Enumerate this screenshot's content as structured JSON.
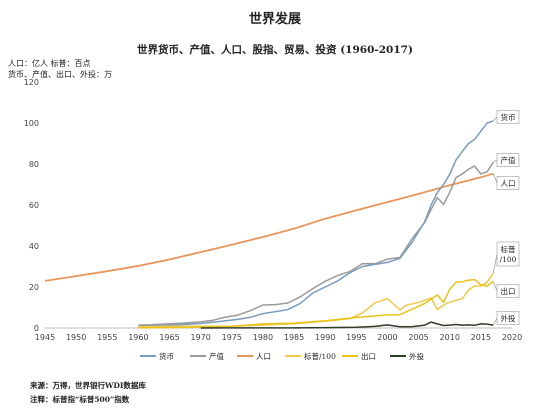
{
  "header": {
    "title": "世界发展",
    "subtitle": "世界货币、产值、人口、股指、贸易、投资 (1960-2017)",
    "unit_line_1": "人口：亿人   标普：百点",
    "unit_line_2": "货币、产值、出口、外投：万"
  },
  "footer": {
    "source": "来源：万得，世界银行WDI数据库",
    "note": "注释：标普指“标普500”指数"
  },
  "colors": {
    "money": "#7a9cc0",
    "gdp": "#9a9a9a",
    "population": "#e8955b",
    "sp500": "#f2c84b",
    "exports": "#e9c21a",
    "fdi": "#2f3d2a"
  },
  "chart_data": {
    "type": "line",
    "title": "世界货币、产值、人口、股指、贸易、投资 (1960-2017)",
    "xlim": [
      1945,
      2020
    ],
    "ylim": [
      0,
      120
    ],
    "xticks": [
      1945,
      1950,
      1955,
      1960,
      1965,
      1970,
      1975,
      1980,
      1985,
      1990,
      1995,
      2000,
      2005,
      2010,
      2015,
      2020
    ],
    "yticks": [
      0,
      20,
      40,
      60,
      80,
      100,
      120
    ],
    "grid": false,
    "legend": "bottom",
    "series": [
      {
        "key": "money",
        "name": "货币",
        "callout": "货币",
        "x": [
          1960,
          1962,
          1964,
          1966,
          1968,
          1970,
          1972,
          1974,
          1976,
          1978,
          1980,
          1982,
          1984,
          1986,
          1988,
          1990,
          1992,
          1994,
          1996,
          1998,
          2000,
          2002,
          2004,
          2006,
          2007,
          2008,
          2009,
          2010,
          2011,
          2012,
          2013,
          2014,
          2015,
          2016,
          2017
        ],
        "values": [
          0.8,
          1.0,
          1.2,
          1.5,
          1.8,
          2.2,
          2.8,
          3.5,
          4.2,
          5.2,
          7,
          8,
          9,
          12,
          17,
          20,
          23,
          27,
          30,
          31,
          32,
          34,
          42,
          52,
          60,
          66,
          70,
          75,
          82,
          86,
          90,
          92,
          96,
          100,
          101
        ]
      },
      {
        "key": "gdp",
        "name": "产值",
        "callout": "产值",
        "x": [
          1960,
          1962,
          1964,
          1966,
          1968,
          1970,
          1972,
          1974,
          1976,
          1978,
          1980,
          1982,
          1984,
          1986,
          1988,
          1990,
          1992,
          1994,
          1996,
          1998,
          2000,
          2002,
          2004,
          2006,
          2007,
          2008,
          2009,
          2010,
          2011,
          2012,
          2013,
          2014,
          2015,
          2016,
          2017
        ],
        "values": [
          1.4,
          1.6,
          1.9,
          2.2,
          2.6,
          3.0,
          3.8,
          5.3,
          6.3,
          8.5,
          11.2,
          11.4,
          12.2,
          15.2,
          19.2,
          22.8,
          25.6,
          27.6,
          31.4,
          31.3,
          33.6,
          34.4,
          43.8,
          51.5,
          57.8,
          63.6,
          60.3,
          66.1,
          73.3,
          75.1,
          77.4,
          79.0,
          75.1,
          76.2,
          80.9
        ]
      },
      {
        "key": "population",
        "name": "人口",
        "callout": "人口",
        "x": [
          1945,
          1950,
          1955,
          1960,
          1965,
          1970,
          1975,
          1980,
          1985,
          1990,
          1995,
          2000,
          2005,
          2010,
          2015,
          2017
        ],
        "values": [
          23,
          25.3,
          27.7,
          30.3,
          33.4,
          37,
          40.6,
          44.4,
          48.5,
          53.3,
          57.4,
          61.4,
          65.4,
          69.6,
          73.5,
          75.3
        ]
      },
      {
        "key": "sp500",
        "name": "标普/100",
        "callout_line_1": "标普",
        "callout_line_2": "/100",
        "x": [
          1960,
          1965,
          1970,
          1975,
          1980,
          1985,
          1990,
          1994,
          1996,
          1998,
          2000,
          2002,
          2003,
          2005,
          2007,
          2008,
          2009,
          2010,
          2012,
          2013,
          2014,
          2015,
          2016,
          2017
        ],
        "values": [
          0.6,
          0.9,
          0.9,
          0.9,
          1.4,
          2.1,
          3.3,
          4.6,
          7.4,
          12.3,
          14.3,
          8.8,
          11.1,
          12.5,
          14.7,
          9.0,
          11.2,
          12.6,
          14.3,
          18.5,
          20.6,
          20.4,
          22.4,
          26.7
        ]
      },
      {
        "key": "exports",
        "name": "出口",
        "callout": "出口",
        "x": [
          1960,
          1965,
          1970,
          1975,
          1980,
          1985,
          1990,
          1995,
          2000,
          2002,
          2004,
          2006,
          2008,
          2009,
          2010,
          2011,
          2012,
          2013,
          2014,
          2015,
          2016,
          2017
        ],
        "values": [
          0.15,
          0.2,
          0.4,
          0.9,
          2.0,
          2.4,
          3.5,
          5.1,
          6.4,
          6.5,
          9.2,
          12.0,
          16.1,
          12.5,
          18.9,
          22.3,
          22.6,
          23.3,
          23.6,
          21.0,
          20.5,
          22.7
        ]
      },
      {
        "key": "fdi",
        "name": "外投",
        "callout": "外投",
        "x": [
          1970,
          1975,
          1980,
          1985,
          1990,
          1995,
          1998,
          2000,
          2002,
          2004,
          2006,
          2007,
          2008,
          2009,
          2010,
          2011,
          2012,
          2013,
          2014,
          2015,
          2016,
          2017
        ],
        "values": [
          0.01,
          0.03,
          0.05,
          0.06,
          0.2,
          0.35,
          0.8,
          1.5,
          0.6,
          0.7,
          1.4,
          2.9,
          2.0,
          1.2,
          1.4,
          1.7,
          1.4,
          1.5,
          1.3,
          2.0,
          1.9,
          1.4
        ]
      }
    ]
  }
}
